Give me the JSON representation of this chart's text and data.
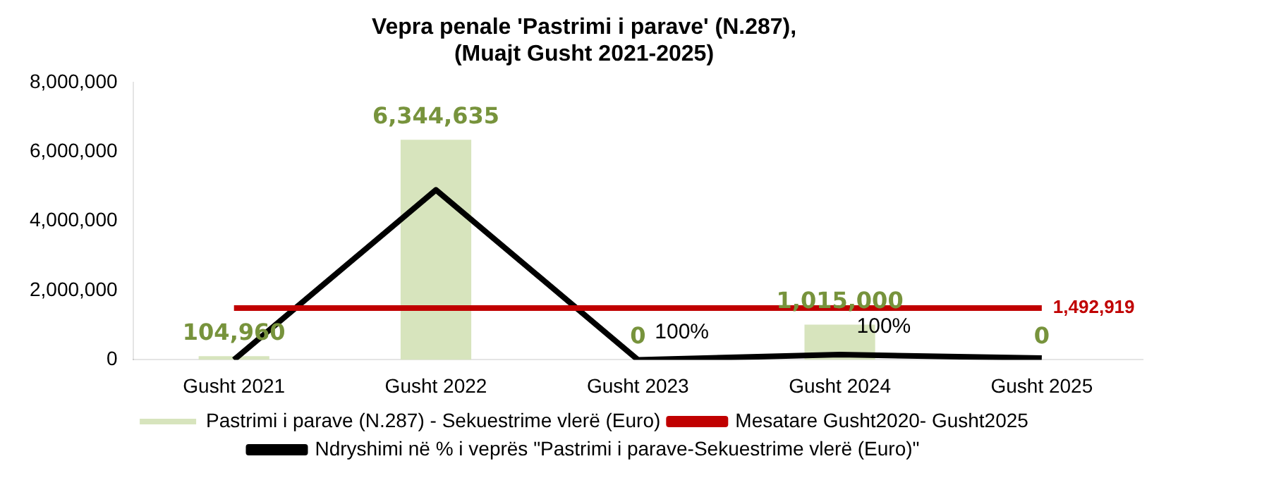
{
  "chart_data": {
    "type": "bar",
    "title": "Vepra penale 'Pastrimi i parave' (N.287),\n(Muajt Gusht 2021-2025)",
    "categories": [
      "Gusht 2021",
      "Gusht 2022",
      "Gusht 2023",
      "Gusht 2024",
      "Gusht 2025"
    ],
    "series": [
      {
        "name": "Pastrimi i parave (N.287) - Sekuestrime vlerë (Euro)",
        "color": "#d7e4bd",
        "values": [
          104960,
          6344635,
          0,
          1015000,
          0
        ],
        "value_labels": [
          "104,960",
          "6,344,635",
          "0",
          "1,015,000",
          "0"
        ]
      },
      {
        "name": "Mesatare Gusht2020- Gusht2025",
        "type": "line",
        "color": "#c00000",
        "values": [
          1492919,
          1492919,
          1492919,
          1492919,
          1492919
        ],
        "value_labels": [
          null,
          null,
          null,
          null,
          "1,492,919"
        ]
      },
      {
        "name": "Ndryshimi në % i veprës \"Pastrimi i parave-Sekuestrime vlerë (Euro)\"",
        "type": "line",
        "color": "#000000",
        "values": [
          0,
          4900000,
          0,
          150000,
          50000
        ]
      }
    ],
    "annotations": [
      {
        "text": "100%",
        "x": "Gusht 2023",
        "y": 0
      },
      {
        "text": "100%",
        "x": "Gusht 2024",
        "y": 150000
      }
    ],
    "ylim": [
      0,
      8000000
    ],
    "yticks": [
      0,
      {
        "value": 2000000,
        "label": "2,000,000"
      },
      {
        "value": 4000000,
        "label": "4,000,000"
      },
      {
        "value": 6000000,
        "label": "6,000,000"
      },
      {
        "value": 8000000,
        "label": "8,000,000"
      }
    ],
    "grid": false,
    "legend": "bottom",
    "marker": "none"
  }
}
